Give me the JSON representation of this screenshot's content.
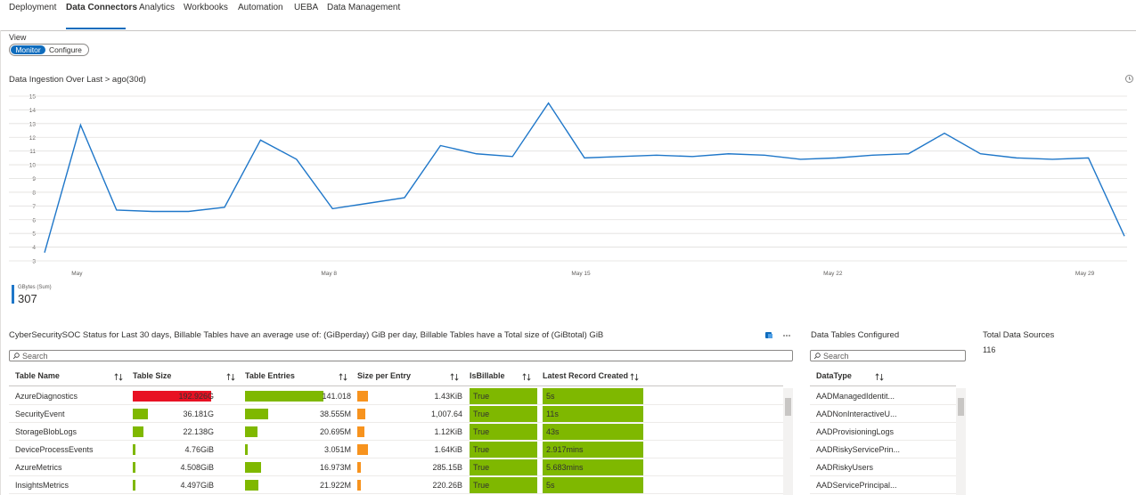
{
  "tabs": [
    "Deployment",
    "Data Connectors",
    "Analytics",
    "Workbooks",
    "Automation",
    "UEBA",
    "Data Management"
  ],
  "view": {
    "label": "View",
    "options": [
      "Monitor",
      "Configure"
    ]
  },
  "chart_data": {
    "type": "line",
    "title": "Data Ingestion Over Last > ago(30d)",
    "categories": [
      null,
      "May",
      null,
      null,
      null,
      null,
      null,
      null,
      "May 8",
      null,
      null,
      null,
      null,
      null,
      null,
      "May 15",
      null,
      null,
      null,
      null,
      null,
      null,
      "May 22",
      null,
      null,
      null,
      null,
      null,
      null,
      "May 29",
      null
    ],
    "series": [
      {
        "name": "GBytes (Sum)",
        "color": "#1f77c9",
        "values": [
          3.6,
          12.9,
          6.7,
          6.6,
          6.6,
          6.9,
          11.8,
          10.4,
          6.8,
          7.2,
          7.6,
          11.4,
          10.8,
          10.6,
          14.5,
          10.5,
          10.6,
          10.7,
          10.6,
          10.8,
          10.7,
          10.4,
          10.5,
          10.7,
          10.8,
          12.3,
          10.8,
          10.5,
          10.4,
          10.5,
          4.8
        ]
      }
    ],
    "ylim": [
      3,
      15
    ],
    "yticks": [
      3,
      4,
      5,
      6,
      7,
      8,
      9,
      10,
      11,
      12,
      13,
      14,
      15
    ],
    "grid": true,
    "summary_value": 307
  },
  "table": {
    "title": "CyberSecuritySOC Status for Last 30 days, Billable Tables have an average use of: (GiBperday) GiB per day, Billable Tables have a Total size of (GiBtotal) GiB",
    "search_placeholder": "Search",
    "columns": [
      "Table Name",
      "Table Size",
      "Table Entries",
      "Size per Entry",
      "IsBillable",
      "Latest Record Created"
    ],
    "rows": [
      [
        "AzureDiagnostics",
        "192.926G",
        "141.018",
        "1.43KiB",
        "True",
        "5s"
      ],
      [
        "SecurityEvent",
        "36.181G",
        "38.555M",
        "1,007.64",
        "True",
        "11s"
      ],
      [
        "StorageBlobLogs",
        "22.138G",
        "20.695M",
        "1.12KiB",
        "True",
        "43s"
      ],
      [
        "DeviceProcessEvents",
        "4.76GiB",
        "3.051M",
        "1.64KiB",
        "True",
        "2.917mins"
      ],
      [
        "AzureMetrics",
        "4.508GiB",
        "16.973M",
        "285.15B",
        "True",
        "5.683mins"
      ],
      [
        "InsightsMetrics",
        "4.497GiB",
        "21.922M",
        "220.26B",
        "True",
        "5s"
      ]
    ]
  },
  "side_table": {
    "title": "Data Tables Configured",
    "search_placeholder": "Search",
    "columns": [
      "DataType"
    ],
    "rows": [
      "AADManagedIdentit...",
      "AADNonInteractiveU...",
      "AADProvisioningLogs",
      "AADRiskyServicePrin...",
      "AADRiskyUsers",
      "AADServicePrincipal..."
    ]
  },
  "total_sources": {
    "label": "Total Data Sources",
    "value": "116"
  }
}
